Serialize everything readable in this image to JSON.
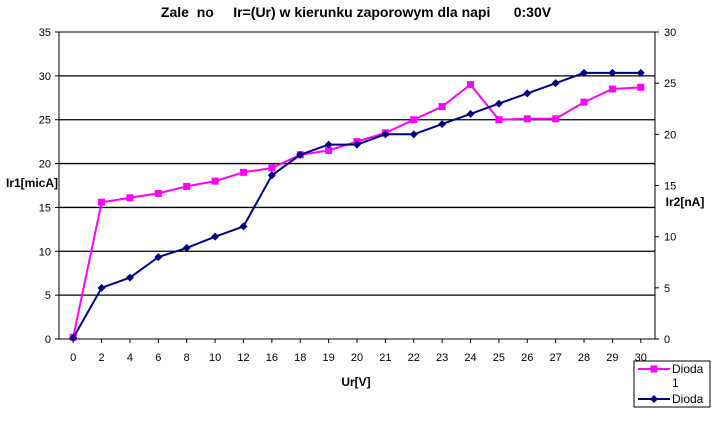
{
  "chart_data": {
    "type": "line",
    "title": "Zale  no     Ir=(Ur) w kierunku zaporowym dla napi      0:30V",
    "xlabel": "Ur[V]",
    "ylabel_left": "Ir1[micA]",
    "ylabel_right": "Ir2[nA]",
    "categories": [
      "0",
      "2",
      "4",
      "6",
      "8",
      "10",
      "12",
      "16",
      "18",
      "19",
      "20",
      "21",
      "22",
      "23",
      "24",
      "25",
      "26",
      "27",
      "28",
      "29",
      "30"
    ],
    "left_ticks": [
      "0",
      "5",
      "10",
      "15",
      "20",
      "25",
      "30",
      "35"
    ],
    "right_ticks": [
      "0",
      "5",
      "10",
      "15",
      "20",
      "25",
      "30"
    ],
    "ylim_left": [
      0,
      35
    ],
    "ylim_right": [
      0,
      30
    ],
    "grid": "horizontal",
    "legend_position": "bottom-right",
    "series": [
      {
        "name": "Dioda 1",
        "axis": "left",
        "color": "#ff00ff",
        "marker": "square",
        "values": [
          0.2,
          15.6,
          16.1,
          16.6,
          17.4,
          18.0,
          19.0,
          19.5,
          21.0,
          21.5,
          22.5,
          23.5,
          25.0,
          26.5,
          29.0,
          25.0,
          25.1,
          25.1,
          27.0,
          28.5,
          28.7
        ]
      },
      {
        "name": "Dioda",
        "axis": "right",
        "color": "#000080",
        "marker": "diamond",
        "values": [
          0.1,
          5.0,
          6.0,
          8.0,
          8.9,
          10.0,
          11.0,
          16.0,
          18.0,
          19.0,
          19.0,
          20.0,
          20.0,
          21.0,
          22.0,
          23.0,
          24.0,
          25.0,
          26.0,
          26.0,
          26.0
        ]
      }
    ]
  }
}
